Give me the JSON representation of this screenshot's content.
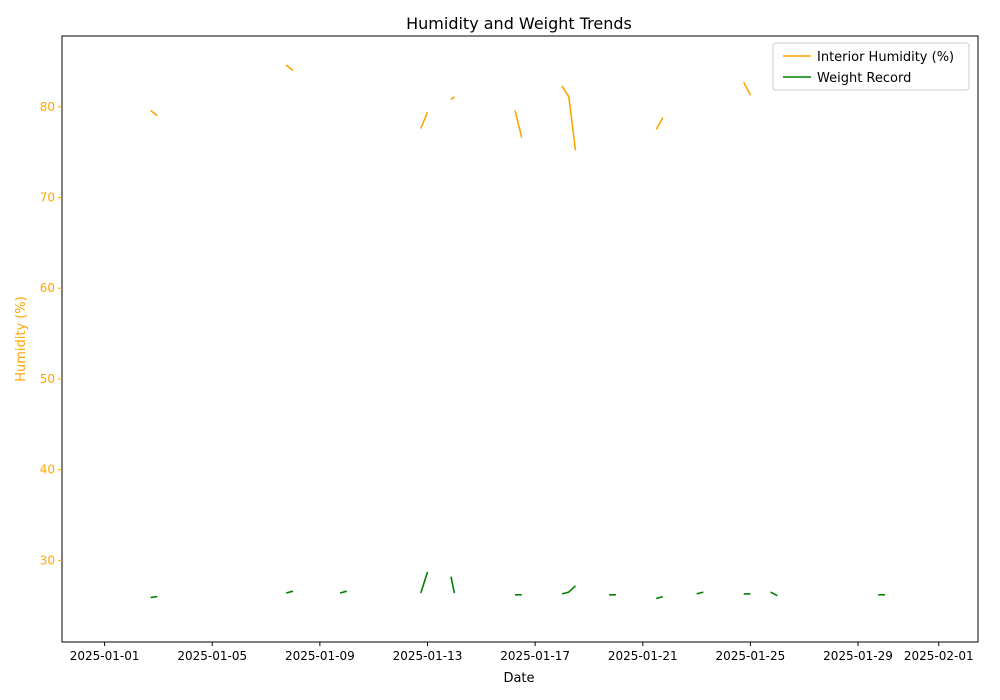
{
  "chart_data": {
    "type": "line",
    "title": "Humidity and Weight Trends",
    "xlabel": "Date",
    "ylabel": "Humidity (%)",
    "ylim": [
      21,
      87.8
    ],
    "xlim": [
      "2024-12-30T10:00",
      "2025-02-02T11:00"
    ],
    "yticks": [
      30,
      40,
      50,
      60,
      70,
      80
    ],
    "xticks": [
      "2025-01-01",
      "2025-01-05",
      "2025-01-09",
      "2025-01-13",
      "2025-01-17",
      "2025-01-21",
      "2025-01-25",
      "2025-01-29",
      "2025-02-01"
    ],
    "legend_position": "top-right",
    "grid": false,
    "colors": {
      "humidity": "#FFA500",
      "weight": "#008000",
      "axis": "#000000"
    },
    "series": [
      {
        "name": "Interior Humidity (%)",
        "color_key": "humidity",
        "segments": [
          [
            [
              "2025-01-02T17:00",
              79.6
            ],
            [
              "2025-01-02T23:00",
              79.0
            ]
          ],
          [
            [
              "2025-01-07T18:00",
              84.6
            ],
            [
              "2025-01-08T00:00",
              84.0
            ]
          ],
          [
            [
              "2025-01-12T18:00",
              77.6
            ],
            [
              "2025-01-13T00:00",
              79.4
            ]
          ],
          [
            [
              "2025-01-13T21:00",
              80.8
            ],
            [
              "2025-01-14T00:00",
              81.1
            ]
          ],
          [
            [
              "2025-01-16T06:00",
              79.6
            ],
            [
              "2025-01-16T12:00",
              76.6
            ]
          ],
          [
            [
              "2025-01-18T00:00",
              82.3
            ],
            [
              "2025-01-18T06:00",
              81.1
            ],
            [
              "2025-01-18T12:00",
              75.2
            ]
          ],
          [
            [
              "2025-01-21T12:00",
              77.5
            ],
            [
              "2025-01-21T18:00",
              78.8
            ]
          ],
          [
            [
              "2025-01-24T18:00",
              82.7
            ],
            [
              "2025-01-25T00:00",
              81.3
            ]
          ]
        ]
      },
      {
        "name": "Weight Record",
        "color_key": "weight",
        "segments": [
          [
            [
              "2025-01-02T17:00",
              25.9
            ],
            [
              "2025-01-02T23:00",
              26.0
            ]
          ],
          [
            [
              "2025-01-07T18:00",
              26.4
            ],
            [
              "2025-01-08T00:00",
              26.6
            ]
          ],
          [
            [
              "2025-01-09T18:00",
              26.4
            ],
            [
              "2025-01-10T00:00",
              26.6
            ]
          ],
          [
            [
              "2025-01-12T18:00",
              26.4
            ],
            [
              "2025-01-13T00:00",
              28.7
            ]
          ],
          [
            [
              "2025-01-13T21:00",
              28.2
            ],
            [
              "2025-01-14T00:00",
              26.4
            ]
          ],
          [
            [
              "2025-01-16T06:00",
              26.2
            ],
            [
              "2025-01-16T12:00",
              26.2
            ]
          ],
          [
            [
              "2025-01-18T00:00",
              26.3
            ],
            [
              "2025-01-18T06:00",
              26.5
            ],
            [
              "2025-01-18T12:00",
              27.2
            ]
          ],
          [
            [
              "2025-01-19T18:00",
              26.2
            ],
            [
              "2025-01-20T00:00",
              26.2
            ]
          ],
          [
            [
              "2025-01-21T12:00",
              25.8
            ],
            [
              "2025-01-21T18:00",
              26.0
            ]
          ],
          [
            [
              "2025-01-23T00:00",
              26.3
            ],
            [
              "2025-01-23T06:00",
              26.5
            ]
          ],
          [
            [
              "2025-01-24T18:00",
              26.3
            ],
            [
              "2025-01-25T00:00",
              26.3
            ]
          ],
          [
            [
              "2025-01-25T18:00",
              26.5
            ],
            [
              "2025-01-26T00:00",
              26.1
            ]
          ],
          [
            [
              "2025-01-29T18:00",
              26.2
            ],
            [
              "2025-01-30T00:00",
              26.2
            ]
          ]
        ]
      }
    ]
  }
}
